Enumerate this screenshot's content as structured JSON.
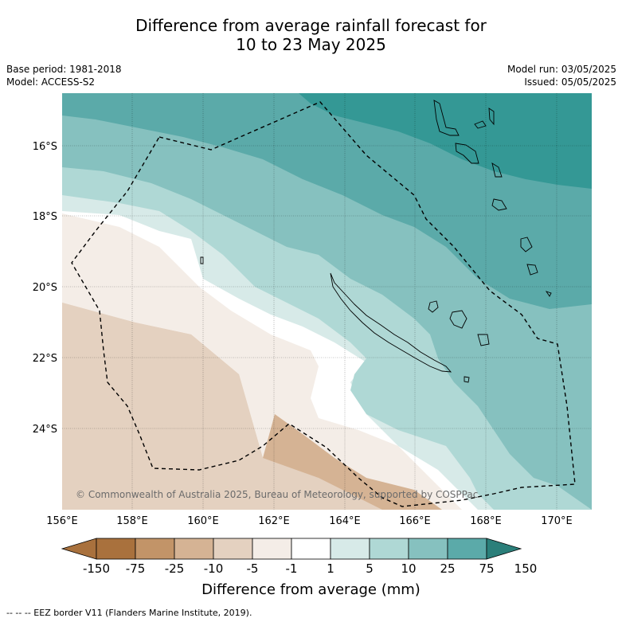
{
  "header": {
    "title_line1": "Difference from average rainfall forecast for",
    "title_line2": "10 to 23 May 2025",
    "base_period": "Base period: 1981-2018",
    "model": "Model: ACCESS-S2",
    "model_run": "Model run: 03/05/2025",
    "issued": "Issued: 05/05/2025"
  },
  "map": {
    "lon_ticks": [
      "156°E",
      "158°E",
      "160°E",
      "162°E",
      "164°E",
      "166°E",
      "168°E",
      "170°E"
    ],
    "lat_ticks": [
      "16°S",
      "18°S",
      "20°S",
      "22°S",
      "24°S"
    ],
    "copyright": "© Commonwealth of Australia 2025, Bureau of Meteorology, supported by COSPPac"
  },
  "colorbar": {
    "labels": [
      "-150",
      "-75",
      "-25",
      "-10",
      "-5",
      "-1",
      "1",
      "5",
      "10",
      "25",
      "75",
      "150"
    ],
    "colors": [
      "#a9713d",
      "#c29468",
      "#d5b394",
      "#e4d1c0",
      "#f4ede7",
      "#ffffff",
      "#d7eae8",
      "#afd8d5",
      "#86c1bf",
      "#5baaa9",
      "#349895",
      "#2b7f7a"
    ],
    "title": "Difference from average (mm)"
  },
  "footnote": "-- -- -- EEZ border V11 (Flanders Marine Institute, 2019)."
}
